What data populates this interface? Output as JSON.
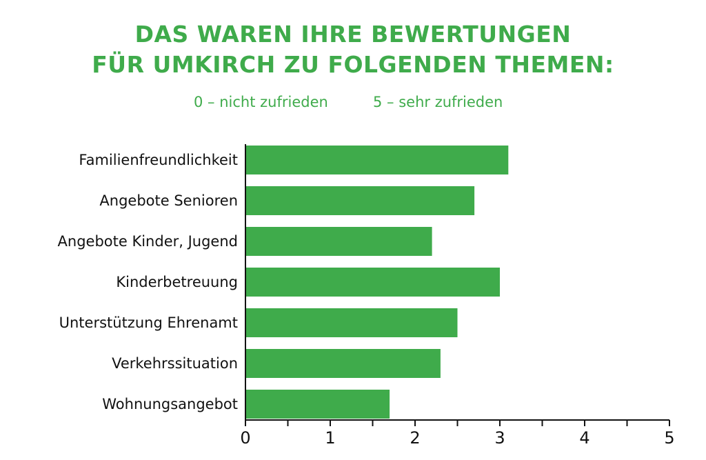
{
  "title_line1": "DAS WAREN IHRE BEWERTUNGEN",
  "title_line2": "FÜR UMKIRCH ZU FOLGENDEN THEMEN:",
  "legend": {
    "low": "0 – nicht zufrieden",
    "high": "5 – sehr zufrieden"
  },
  "colors": {
    "bar": "#3fab4b",
    "title": "#3fab4b",
    "text": "#111111",
    "axis": "#111111"
  },
  "chart_data": {
    "type": "bar",
    "orientation": "horizontal",
    "title": "DAS WAREN IHRE BEWERTUNGEN FÜR UMKIRCH ZU FOLGENDEN THEMEN:",
    "categories": [
      "Familienfreundlichkeit",
      "Angebote Senioren",
      "Angebote Kinder, Jugend",
      "Kinderbetreuung",
      "Unterstützung Ehrenamt",
      "Verkehrssituation",
      "Wohnungsangebot"
    ],
    "values": [
      3.1,
      2.7,
      2.2,
      3.0,
      2.5,
      2.3,
      1.7
    ],
    "xlim": [
      0,
      5
    ],
    "xticks": [
      "0",
      "1",
      "2",
      "3",
      "4",
      "5"
    ],
    "xlabel": "",
    "ylabel": "",
    "grid": false
  }
}
